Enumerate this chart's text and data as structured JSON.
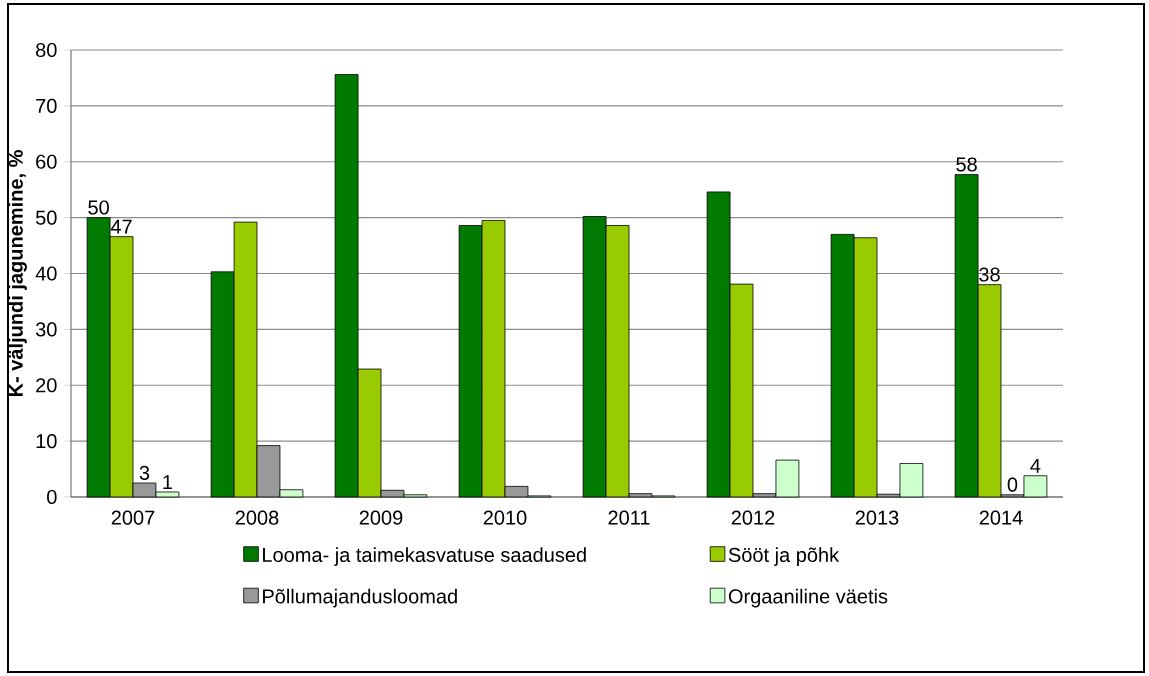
{
  "chart_data": {
    "type": "bar",
    "ylabel": "K- väljundi jagunemine, %",
    "categories": [
      "2007",
      "2008",
      "2009",
      "2010",
      "2011",
      "2012",
      "2013",
      "2014"
    ],
    "series": [
      {
        "name": "Looma- ja taimekasvatuse saadused",
        "color": "#007a00",
        "values": [
          50,
          40.3,
          75.6,
          48.6,
          50.2,
          54.6,
          47.0,
          57.7
        ],
        "value_labels": [
          "50",
          null,
          null,
          null,
          null,
          null,
          null,
          "58"
        ]
      },
      {
        "name": "Sööt ja põhk",
        "color": "#99cc00",
        "values": [
          46.6,
          49.2,
          22.9,
          49.5,
          48.6,
          38.1,
          46.4,
          38.0
        ],
        "value_labels": [
          "47",
          null,
          null,
          null,
          null,
          null,
          null,
          "38"
        ]
      },
      {
        "name": "Põllumajandusloomad",
        "color": "#999999",
        "values": [
          2.5,
          9.2,
          1.2,
          1.9,
          0.6,
          0.6,
          0.5,
          0.4
        ],
        "value_labels": [
          "3",
          null,
          null,
          null,
          null,
          null,
          null,
          "0"
        ]
      },
      {
        "name": "Orgaaniline väetis",
        "color": "#ccffcc",
        "values": [
          0.9,
          1.3,
          0.4,
          0.2,
          0.2,
          6.6,
          6.0,
          3.8
        ],
        "value_labels": [
          "1",
          null,
          null,
          null,
          null,
          null,
          null,
          "4"
        ]
      }
    ],
    "ylim": [
      0,
      80
    ],
    "yticks": [
      0,
      10,
      20,
      30,
      40,
      50,
      60,
      70,
      80
    ],
    "grid": "y",
    "legend": "bottom"
  }
}
